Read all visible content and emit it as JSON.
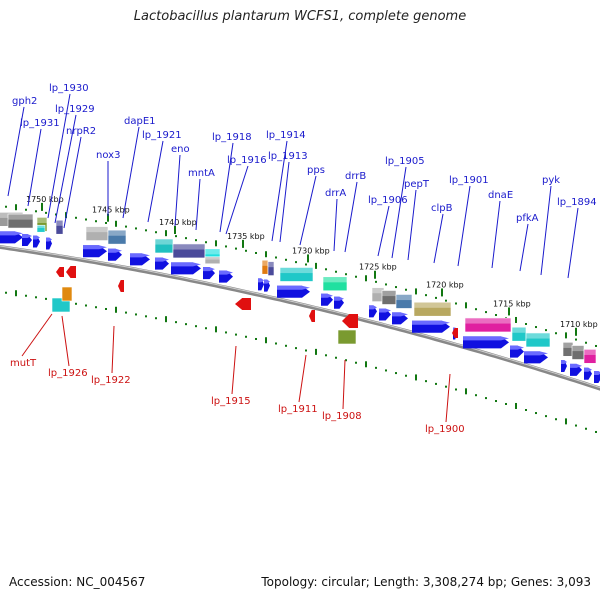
{
  "title": "Lactobacillus plantarum WCFS1, complete genome",
  "footer": {
    "accession": "Accession: NC_004567",
    "summary": "Topology: circular; Length: 3,308,274 bp; Genes: 3,093"
  },
  "colors": {
    "backbone": "#888888",
    "forward_gene": "#1010e0",
    "reverse_gene": "#e01010",
    "tick": "#117711",
    "top_label": "#1a1acc",
    "bottom_label": "#cc1111"
  },
  "ticks": [
    {
      "label": "1750 kbp"
    },
    {
      "label": "1745 kbp"
    },
    {
      "label": "1740 kbp"
    },
    {
      "label": "1735 kbp"
    },
    {
      "label": "1730 kbp"
    },
    {
      "label": "1725 kbp"
    },
    {
      "label": "1720 kbp"
    },
    {
      "label": "1715 kbp"
    },
    {
      "label": "1710 kbp"
    }
  ],
  "top_genes": [
    {
      "label": "gph2"
    },
    {
      "label": "lp_1931"
    },
    {
      "label": "lp_1930"
    },
    {
      "label": "lp_1929"
    },
    {
      "label": "nrpR2"
    },
    {
      "label": "nox3"
    },
    {
      "label": "dapE1"
    },
    {
      "label": "lp_1921"
    },
    {
      "label": "eno"
    },
    {
      "label": "mntA"
    },
    {
      "label": "lp_1918"
    },
    {
      "label": "lp_1916"
    },
    {
      "label": "lp_1914"
    },
    {
      "label": "lp_1913"
    },
    {
      "label": "pps"
    },
    {
      "label": "drrA"
    },
    {
      "label": "drrB"
    },
    {
      "label": "lp_1906"
    },
    {
      "label": "lp_1905"
    },
    {
      "label": "pepT"
    },
    {
      "label": "clpB"
    },
    {
      "label": "lp_1901"
    },
    {
      "label": "dnaE"
    },
    {
      "label": "pfkA"
    },
    {
      "label": "pyk"
    },
    {
      "label": "lp_1894"
    }
  ],
  "bottom_genes": [
    {
      "label": "mutT"
    },
    {
      "label": "lp_1926"
    },
    {
      "label": "lp_1922"
    },
    {
      "label": "lp_1915"
    },
    {
      "label": "lp_1911"
    },
    {
      "label": "lp_1908"
    },
    {
      "label": "lp_1900"
    }
  ]
}
